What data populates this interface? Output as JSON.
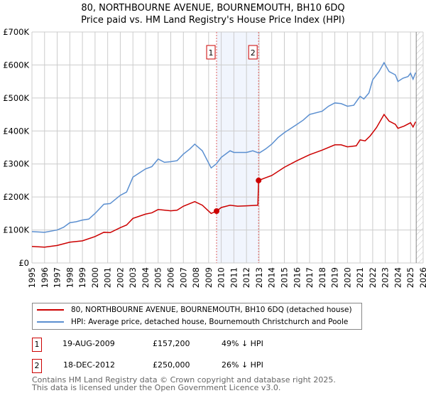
{
  "chart_data": {
    "type": "line",
    "title": "80, NORTHBOURNE AVENUE, BOURNEMOUTH, BH10 6DQ",
    "subtitle": "Price paid vs. HM Land Registry's House Price Index (HPI)",
    "xlim": [
      1995,
      2026
    ],
    "ylim": [
      0,
      700000
    ],
    "x_ticks": [
      "1995",
      "1996",
      "1997",
      "1998",
      "1999",
      "2000",
      "2001",
      "2002",
      "2003",
      "2004",
      "2005",
      "2006",
      "2007",
      "2008",
      "2009",
      "2010",
      "2011",
      "2012",
      "2013",
      "2014",
      "2015",
      "2016",
      "2017",
      "2018",
      "2019",
      "2020",
      "2021",
      "2022",
      "2023",
      "2024",
      "2025",
      "2026"
    ],
    "y_ticks": [
      {
        "v": 0,
        "label": "£0"
      },
      {
        "v": 100000,
        "label": "£100K"
      },
      {
        "v": 200000,
        "label": "£200K"
      },
      {
        "v": 300000,
        "label": "£300K"
      },
      {
        "v": 400000,
        "label": "£400K"
      },
      {
        "v": 500000,
        "label": "£500K"
      },
      {
        "v": 600000,
        "label": "£600K"
      },
      {
        "v": 700000,
        "label": "£700K"
      }
    ],
    "grid": true,
    "series": [
      {
        "name": "80, NORTHBOURNE AVENUE, BOURNEMOUTH, BH10 6DQ (detached house)",
        "color": "#cc0000",
        "points": [
          [
            1995,
            50
          ],
          [
            1996,
            48
          ],
          [
            1997,
            53
          ],
          [
            1998,
            63
          ],
          [
            1999,
            67
          ],
          [
            2000,
            80
          ],
          [
            2000.7,
            93
          ],
          [
            2001.2,
            92
          ],
          [
            2002,
            107
          ],
          [
            2002.5,
            115
          ],
          [
            2003,
            135
          ],
          [
            2004,
            148
          ],
          [
            2004.5,
            152
          ],
          [
            2005,
            162
          ],
          [
            2006,
            158
          ],
          [
            2006.5,
            160
          ],
          [
            2007,
            172
          ],
          [
            2007.9,
            186
          ],
          [
            2008.5,
            175
          ],
          [
            2009.2,
            150
          ],
          [
            2009.63,
            157.2
          ],
          [
            2010,
            168
          ],
          [
            2010.7,
            175
          ],
          [
            2011.3,
            172
          ],
          [
            2012,
            173
          ],
          [
            2012.9,
            175
          ],
          [
            2012.96,
            250
          ],
          [
            2013.5,
            258
          ],
          [
            2014,
            265
          ],
          [
            2015,
            290
          ],
          [
            2016,
            310
          ],
          [
            2017,
            328
          ],
          [
            2018,
            342
          ],
          [
            2019,
            358
          ],
          [
            2019.5,
            358
          ],
          [
            2020,
            352
          ],
          [
            2020.7,
            355
          ],
          [
            2021,
            373
          ],
          [
            2021.4,
            370
          ],
          [
            2021.8,
            385
          ],
          [
            2022.3,
            410
          ],
          [
            2022.9,
            450
          ],
          [
            2023.3,
            430
          ],
          [
            2023.8,
            420
          ],
          [
            2024,
            408
          ],
          [
            2024.5,
            415
          ],
          [
            2025,
            425
          ],
          [
            2025.2,
            412
          ],
          [
            2025.4,
            428
          ]
        ]
      },
      {
        "name": "HPI: Average price, detached house, Bournemouth Christchurch and Poole",
        "color": "#5b8fd0",
        "points": [
          [
            1995,
            95
          ],
          [
            1996,
            93
          ],
          [
            1997,
            100
          ],
          [
            1997.5,
            108
          ],
          [
            1998,
            122
          ],
          [
            1998.5,
            125
          ],
          [
            1999,
            130
          ],
          [
            1999.5,
            133
          ],
          [
            2000,
            150
          ],
          [
            2000.7,
            178
          ],
          [
            2001.2,
            180
          ],
          [
            2002,
            205
          ],
          [
            2002.5,
            215
          ],
          [
            2003,
            260
          ],
          [
            2004,
            285
          ],
          [
            2004.5,
            292
          ],
          [
            2005,
            315
          ],
          [
            2005.5,
            305
          ],
          [
            2006,
            307
          ],
          [
            2006.5,
            310
          ],
          [
            2007,
            330
          ],
          [
            2007.5,
            345
          ],
          [
            2007.9,
            360
          ],
          [
            2008.5,
            340
          ],
          [
            2009.2,
            288
          ],
          [
            2009.6,
            300
          ],
          [
            2010,
            320
          ],
          [
            2010.7,
            340
          ],
          [
            2011,
            335
          ],
          [
            2012,
            335
          ],
          [
            2012.5,
            340
          ],
          [
            2013,
            333
          ],
          [
            2013.5,
            345
          ],
          [
            2014,
            360
          ],
          [
            2014.5,
            380
          ],
          [
            2015,
            395
          ],
          [
            2016,
            420
          ],
          [
            2016.5,
            433
          ],
          [
            2017,
            450
          ],
          [
            2018,
            460
          ],
          [
            2018.5,
            475
          ],
          [
            2019,
            485
          ],
          [
            2019.5,
            483
          ],
          [
            2020,
            475
          ],
          [
            2020.5,
            478
          ],
          [
            2021,
            505
          ],
          [
            2021.3,
            497
          ],
          [
            2021.7,
            515
          ],
          [
            2022,
            555
          ],
          [
            2022.5,
            580
          ],
          [
            2022.9,
            607
          ],
          [
            2023.3,
            580
          ],
          [
            2023.8,
            570
          ],
          [
            2024,
            550
          ],
          [
            2024.4,
            560
          ],
          [
            2024.8,
            565
          ],
          [
            2025,
            575
          ],
          [
            2025.2,
            557
          ],
          [
            2025.4,
            577
          ]
        ]
      }
    ],
    "y_unit": "thousands GBP",
    "forecast_start": 2025.45,
    "annotations": [
      {
        "label": "1",
        "x": 2009.63,
        "y": 157.2
      },
      {
        "label": "2",
        "x": 2012.96,
        "y": 250
      }
    ]
  },
  "sales": [
    {
      "num": "1",
      "date": "19-AUG-2009",
      "price": "£157,200",
      "hpi": "49% ↓ HPI"
    },
    {
      "num": "2",
      "date": "18-DEC-2012",
      "price": "£250,000",
      "hpi": "26% ↓ HPI"
    }
  ],
  "footer": {
    "line1": "Contains HM Land Registry data © Crown copyright and database right 2025.",
    "line2": "This data is licensed under the Open Government Licence v3.0."
  }
}
